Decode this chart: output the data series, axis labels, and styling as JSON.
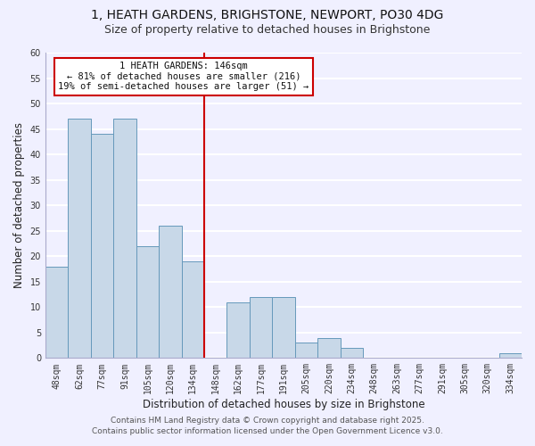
{
  "title": "1, HEATH GARDENS, BRIGHSTONE, NEWPORT, PO30 4DG",
  "subtitle": "Size of property relative to detached houses in Brighstone",
  "xlabel": "Distribution of detached houses by size in Brighstone",
  "ylabel": "Number of detached properties",
  "bar_labels": [
    "48sqm",
    "62sqm",
    "77sqm",
    "91sqm",
    "105sqm",
    "120sqm",
    "134sqm",
    "148sqm",
    "162sqm",
    "177sqm",
    "191sqm",
    "205sqm",
    "220sqm",
    "234sqm",
    "248sqm",
    "263sqm",
    "277sqm",
    "291sqm",
    "305sqm",
    "320sqm",
    "334sqm"
  ],
  "bar_values": [
    18,
    47,
    44,
    47,
    22,
    26,
    19,
    0,
    11,
    12,
    12,
    3,
    4,
    2,
    0,
    0,
    0,
    0,
    0,
    0,
    1
  ],
  "bar_color": "#c8d8e8",
  "bar_edgecolor": "#6699bb",
  "ylim": [
    0,
    60
  ],
  "yticks": [
    0,
    5,
    10,
    15,
    20,
    25,
    30,
    35,
    40,
    45,
    50,
    55,
    60
  ],
  "vline_color": "#cc0000",
  "vline_index": 7,
  "annotation_line1": "1 HEATH GARDENS: 146sqm",
  "annotation_line2": "← 81% of detached houses are smaller (216)",
  "annotation_line3": "19% of semi-detached houses are larger (51) →",
  "footer1": "Contains HM Land Registry data © Crown copyright and database right 2025.",
  "footer2": "Contains public sector information licensed under the Open Government Licence v3.0.",
  "background_color": "#f0f0ff",
  "grid_color": "#ffffff",
  "title_fontsize": 10,
  "subtitle_fontsize": 9,
  "tick_fontsize": 7,
  "label_fontsize": 8.5,
  "footer_fontsize": 6.5
}
